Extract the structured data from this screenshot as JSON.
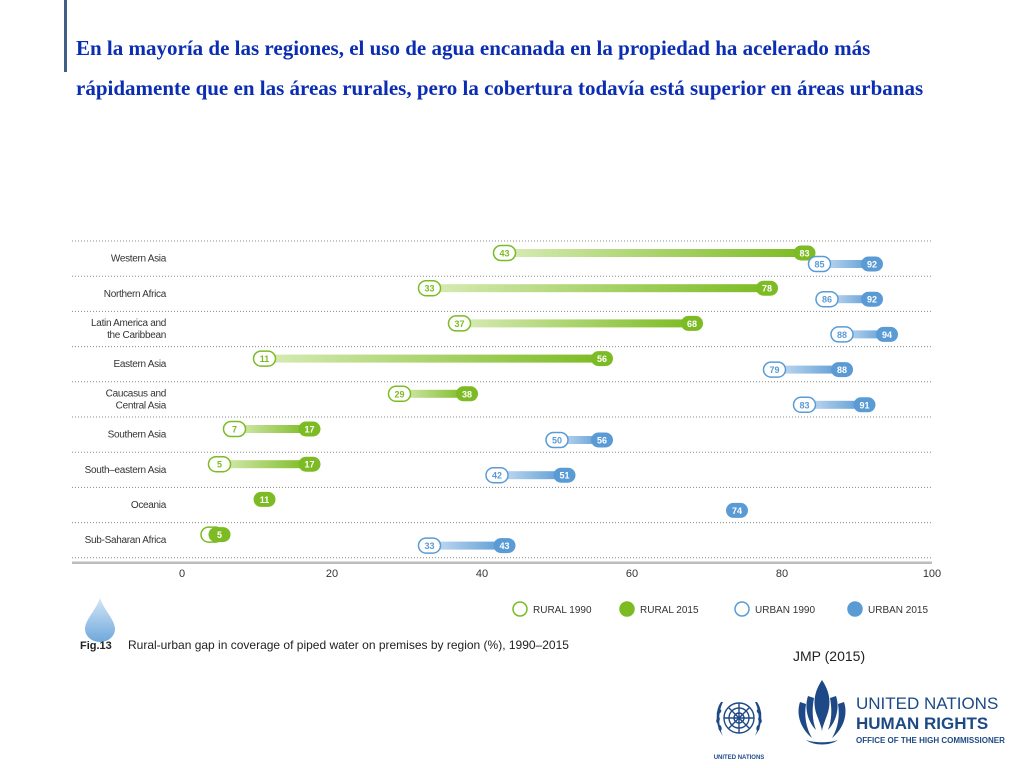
{
  "slide": {
    "title": "En la mayoría de las regiones, el uso de agua encanada en la propiedad ha acelerado más rápidamente que en las áreas rurales, pero la cobertura todavía está superior en áreas urbanas",
    "source": "JMP (2015)"
  },
  "figure": {
    "label": "Fig.13",
    "caption": "Rural-urban gap in coverage of piped water on premises by region (%), 1990–2015"
  },
  "colors": {
    "rural": "#7cbb23",
    "rural_light": "#d7ebb5",
    "urban": "#5b9bd5",
    "urban_light": "#c9def2",
    "title": "#0b2db3",
    "logo_blue": "#1d4a86"
  },
  "logos": {
    "un": "UNITED NATIONS",
    "hr_line1": "UNITED NATIONS",
    "hr_line2": "HUMAN RIGHTS",
    "hr_line3": "OFFICE OF THE HIGH COMMISSIONER"
  },
  "chart_data": {
    "type": "dumbbell",
    "xlim": [
      0,
      100
    ],
    "xticks": [
      0,
      20,
      40,
      60,
      80,
      100
    ],
    "legend": [
      "RURAL 1990",
      "RURAL 2015",
      "URBAN 1990",
      "URBAN 2015"
    ],
    "legend_position": "bottom-right",
    "categories": [
      [
        "Western Asia"
      ],
      [
        "Northern Africa"
      ],
      [
        "Latin America and",
        "the Caribbean"
      ],
      [
        "Eastern Asia"
      ],
      [
        "Caucasus and",
        "Central Asia"
      ],
      [
        "Southern Asia"
      ],
      [
        "South–eastern Asia"
      ],
      [
        "Oceania"
      ],
      [
        "Sub-Saharan Africa"
      ]
    ],
    "series": [
      {
        "name": "RURAL 1990",
        "values": [
          43,
          33,
          37,
          11,
          29,
          7,
          5,
          11,
          4
        ]
      },
      {
        "name": "RURAL 2015",
        "values": [
          83,
          78,
          68,
          56,
          38,
          17,
          17,
          11,
          5
        ]
      },
      {
        "name": "URBAN 1990",
        "values": [
          85,
          86,
          88,
          79,
          83,
          50,
          42,
          74,
          33
        ]
      },
      {
        "name": "URBAN 2015",
        "values": [
          92,
          92,
          94,
          88,
          91,
          56,
          51,
          74,
          43
        ]
      }
    ]
  }
}
